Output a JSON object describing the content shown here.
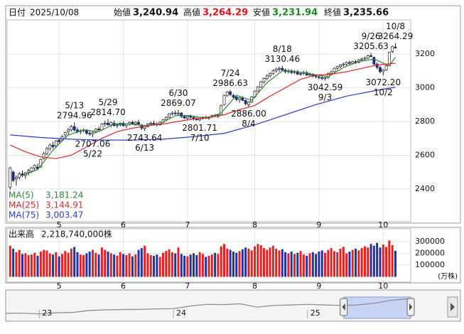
{
  "chart_data": {
    "type": "candlestick",
    "header": [
      {
        "label": "日付",
        "value": "2025/10/08",
        "color": "#111111"
      },
      {
        "label": "始値",
        "value": "3,240.94",
        "color": "#111111"
      },
      {
        "label": "高値",
        "value": "3,264.29",
        "color": "#e8101a"
      },
      {
        "label": "安値",
        "value": "3,231.94",
        "color": "#1a8a1a"
      },
      {
        "label": "終値",
        "value": "3,235.66",
        "color": "#111111"
      }
    ],
    "xlim": [
      -1,
      131
    ],
    "xticks": [
      {
        "value": 16,
        "label": "5"
      },
      {
        "value": 37,
        "label": "6"
      },
      {
        "value": 58,
        "label": "7"
      },
      {
        "value": 80,
        "label": "8"
      },
      {
        "value": 101,
        "label": "9"
      },
      {
        "value": 122,
        "label": "10"
      }
    ],
    "ylim": [
      2206,
      3402
    ],
    "yticks": [
      3200,
      3000,
      2800,
      2600,
      2400
    ],
    "grid": true,
    "up_color": "#ffffff",
    "down_color": "#1f2a7a",
    "candles": [
      [
        2410,
        2530,
        2395,
        2525
      ],
      [
        2500,
        2510,
        2440,
        2450
      ],
      [
        2460,
        2480,
        2420,
        2470
      ],
      [
        2470,
        2500,
        2455,
        2490
      ],
      [
        2490,
        2510,
        2470,
        2480
      ],
      [
        2480,
        2500,
        2460,
        2495
      ],
      [
        2500,
        2520,
        2480,
        2510
      ],
      [
        2505,
        2530,
        2495,
        2525
      ],
      [
        2525,
        2545,
        2510,
        2540
      ],
      [
        2530,
        2550,
        2510,
        2520
      ],
      [
        2530,
        2580,
        2525,
        2575
      ],
      [
        2580,
        2620,
        2575,
        2610
      ],
      [
        2610,
        2650,
        2600,
        2640
      ],
      [
        2640,
        2670,
        2625,
        2660
      ],
      [
        2660,
        2680,
        2640,
        2650
      ],
      [
        2655,
        2690,
        2650,
        2685
      ],
      [
        2690,
        2700,
        2670,
        2680
      ],
      [
        2690,
        2720,
        2680,
        2710
      ],
      [
        2720,
        2740,
        2705,
        2735
      ],
      [
        2740,
        2760,
        2720,
        2750
      ],
      [
        2750,
        2780,
        2740,
        2770
      ],
      [
        2770,
        2794.96,
        2740,
        2750
      ],
      [
        2750,
        2765,
        2730,
        2740
      ],
      [
        2740,
        2755,
        2725,
        2745
      ],
      [
        2745,
        2760,
        2735,
        2750
      ],
      [
        2750,
        2755,
        2720,
        2730
      ],
      [
        2730,
        2745,
        2715,
        2725
      ],
      [
        2725,
        2740,
        2707.06,
        2735
      ],
      [
        2735,
        2760,
        2730,
        2755
      ],
      [
        2755,
        2770,
        2745,
        2750
      ],
      [
        2750,
        2790,
        2748,
        2785
      ],
      [
        2785,
        2805,
        2770,
        2790
      ],
      [
        2790,
        2814.7,
        2775,
        2780
      ],
      [
        2780,
        2800,
        2765,
        2795
      ],
      [
        2790,
        2805,
        2770,
        2775
      ],
      [
        2775,
        2790,
        2760,
        2780
      ],
      [
        2780,
        2795,
        2770,
        2790
      ],
      [
        2790,
        2800,
        2770,
        2775
      ],
      [
        2775,
        2790,
        2760,
        2785
      ],
      [
        2785,
        2800,
        2775,
        2795
      ],
      [
        2795,
        2805,
        2780,
        2785
      ],
      [
        2785,
        2800,
        2775,
        2795
      ],
      [
        2795,
        2810,
        2780,
        2785
      ],
      [
        2780,
        2785,
        2750,
        2760
      ],
      [
        2760,
        2775,
        2743.64,
        2770
      ],
      [
        2770,
        2790,
        2765,
        2785
      ],
      [
        2785,
        2800,
        2775,
        2790
      ],
      [
        2790,
        2805,
        2780,
        2785
      ],
      [
        2785,
        2795,
        2770,
        2780
      ],
      [
        2780,
        2800,
        2775,
        2795
      ],
      [
        2795,
        2815,
        2790,
        2810
      ],
      [
        2810,
        2830,
        2805,
        2825
      ],
      [
        2825,
        2850,
        2820,
        2845
      ],
      [
        2845,
        2860,
        2835,
        2850
      ],
      [
        2850,
        2865,
        2840,
        2845
      ],
      [
        2845,
        2869.07,
        2835,
        2850
      ],
      [
        2850,
        2855,
        2820,
        2830
      ],
      [
        2830,
        2840,
        2815,
        2820
      ],
      [
        2820,
        2835,
        2810,
        2830
      ],
      [
        2830,
        2840,
        2815,
        2825
      ],
      [
        2825,
        2830,
        2805,
        2815
      ],
      [
        2815,
        2825,
        2805,
        2810
      ],
      [
        2810,
        2820,
        2801.71,
        2818
      ],
      [
        2818,
        2830,
        2810,
        2825
      ],
      [
        2825,
        2835,
        2815,
        2820
      ],
      [
        2820,
        2830,
        2810,
        2828
      ],
      [
        2828,
        2840,
        2820,
        2835
      ],
      [
        2835,
        2845,
        2825,
        2830
      ],
      [
        2830,
        2840,
        2820,
        2838
      ],
      [
        2840,
        2900,
        2838,
        2895
      ],
      [
        2900,
        2960,
        2895,
        2955
      ],
      [
        2955,
        2980,
        2945,
        2975
      ],
      [
        2975,
        2986.63,
        2950,
        2960
      ],
      [
        2955,
        2965,
        2935,
        2945
      ],
      [
        2945,
        2955,
        2920,
        2930
      ],
      [
        2930,
        2945,
        2910,
        2940
      ],
      [
        2940,
        2950,
        2920,
        2925
      ],
      [
        2925,
        2930,
        2895,
        2905
      ],
      [
        2900,
        2920,
        2886,
        2915
      ],
      [
        2915,
        2950,
        2910,
        2945
      ],
      [
        2945,
        2985,
        2940,
        2980
      ],
      [
        2980,
        3010,
        2975,
        3005
      ],
      [
        3005,
        3040,
        3000,
        3035
      ],
      [
        3035,
        3060,
        3025,
        3055
      ],
      [
        3055,
        3080,
        3045,
        3070
      ],
      [
        3070,
        3090,
        3060,
        3085
      ],
      [
        3085,
        3110,
        3075,
        3100
      ],
      [
        3100,
        3120,
        3090,
        3110
      ],
      [
        3110,
        3125,
        3095,
        3115
      ],
      [
        3115,
        3130.46,
        3100,
        3105
      ],
      [
        3105,
        3115,
        3085,
        3095
      ],
      [
        3095,
        3110,
        3085,
        3100
      ],
      [
        3100,
        3110,
        3080,
        3090
      ],
      [
        3090,
        3105,
        3080,
        3095
      ],
      [
        3095,
        3105,
        3075,
        3080
      ],
      [
        3080,
        3095,
        3070,
        3085
      ],
      [
        3085,
        3100,
        3075,
        3090
      ],
      [
        3090,
        3100,
        3070,
        3075
      ],
      [
        3075,
        3090,
        3065,
        3080
      ],
      [
        3080,
        3085,
        3060,
        3070
      ],
      [
        3070,
        3080,
        3055,
        3065
      ],
      [
        3065,
        3075,
        3050,
        3060
      ],
      [
        3060,
        3070,
        3045,
        3055
      ],
      [
        3055,
        3065,
        3042.59,
        3060
      ],
      [
        3060,
        3090,
        3055,
        3085
      ],
      [
        3085,
        3100,
        3075,
        3095
      ],
      [
        3095,
        3120,
        3090,
        3115
      ],
      [
        3115,
        3130,
        3105,
        3125
      ],
      [
        3125,
        3140,
        3115,
        3135
      ],
      [
        3135,
        3150,
        3125,
        3140
      ],
      [
        3140,
        3155,
        3130,
        3150
      ],
      [
        3150,
        3160,
        3135,
        3145
      ],
      [
        3145,
        3160,
        3140,
        3155
      ],
      [
        3155,
        3165,
        3140,
        3150
      ],
      [
        3150,
        3170,
        3145,
        3165
      ],
      [
        3165,
        3180,
        3155,
        3170
      ],
      [
        3170,
        3185,
        3160,
        3175
      ],
      [
        3175,
        3195,
        3170,
        3190
      ],
      [
        3190,
        3205.63,
        3180,
        3185
      ],
      [
        3180,
        3185,
        3130,
        3140
      ],
      [
        3140,
        3150,
        3110,
        3120
      ],
      [
        3120,
        3130,
        3085,
        3095
      ],
      [
        3095,
        3110,
        3072.2,
        3105
      ],
      [
        3105,
        3140,
        3100,
        3130
      ],
      [
        3130,
        3215,
        3128,
        3210
      ],
      [
        3215,
        3250,
        3205,
        3245
      ],
      [
        3240.94,
        3264.29,
        3231.94,
        3235.66
      ]
    ],
    "annotations": [
      {
        "date": "5/13",
        "value": 2794.96,
        "at": 21,
        "kind": "high"
      },
      {
        "date": "5/22",
        "value": 2707.06,
        "at": 27,
        "kind": "low"
      },
      {
        "date": "5/29",
        "value": 2814.7,
        "value_label": "2814.70",
        "at": 32,
        "kind": "high"
      },
      {
        "date": "6/13",
        "value": 2743.64,
        "at": 44,
        "kind": "low"
      },
      {
        "date": "6/30",
        "value": 2869.07,
        "at": 55,
        "kind": "high"
      },
      {
        "date": "7/10",
        "value": 2801.71,
        "at": 62,
        "kind": "low"
      },
      {
        "date": "7/24",
        "value": 2986.63,
        "at": 72,
        "kind": "high"
      },
      {
        "date": "8/4",
        "value": 2886,
        "value_label": "2886.00",
        "at": 78,
        "kind": "low"
      },
      {
        "date": "8/18",
        "value": 3130.46,
        "at": 89,
        "kind": "high"
      },
      {
        "date": "9/3",
        "value": 3042.59,
        "at": 103,
        "kind": "low"
      },
      {
        "date": "9/26",
        "value": 3205.63,
        "at": 118,
        "kind": "high"
      },
      {
        "date": "10/2",
        "value": 3072.2,
        "value_label": "3072.20",
        "at": 122,
        "kind": "low"
      },
      {
        "date": "10/8",
        "value": 3264.29,
        "at": 126,
        "kind": "high"
      }
    ],
    "series": [
      {
        "name": "MA(5)",
        "color": "#2e8b2e",
        "legend_value": "3,181.24",
        "x": [
          4,
          9,
          14,
          19,
          24,
          29,
          34,
          39,
          44,
          49,
          54,
          59,
          64,
          69,
          74,
          79,
          84,
          89,
          94,
          99,
          104,
          109,
          114,
          119,
          124,
          126
        ],
        "values": [
          2480,
          2515,
          2630,
          2720,
          2750,
          2740,
          2785,
          2785,
          2775,
          2785,
          2835,
          2835,
          2818,
          2850,
          2955,
          2925,
          3030,
          3100,
          3095,
          3080,
          3065,
          3120,
          3155,
          3170,
          3130,
          3181.24
        ]
      },
      {
        "name": "MA(25)",
        "color": "#e02828",
        "legend_value": "3,144.91",
        "x": [
          0,
          5,
          10,
          15,
          20,
          25,
          30,
          35,
          40,
          45,
          50,
          55,
          60,
          65,
          70,
          75,
          80,
          85,
          90,
          95,
          100,
          105,
          110,
          115,
          120,
          126
        ],
        "values": [
          2660,
          2620,
          2590,
          2580,
          2600,
          2650,
          2700,
          2740,
          2760,
          2775,
          2785,
          2800,
          2815,
          2825,
          2840,
          2870,
          2895,
          2950,
          3000,
          3050,
          3075,
          3080,
          3095,
          3115,
          3135,
          3144.91
        ]
      },
      {
        "name": "MA(75)",
        "color": "#2a3ac8",
        "legend_value": "3,003.47",
        "x": [
          0,
          10,
          20,
          30,
          40,
          50,
          60,
          70,
          80,
          90,
          100,
          110,
          120,
          126
        ],
        "values": [
          2720,
          2705,
          2695,
          2690,
          2690,
          2695,
          2710,
          2730,
          2780,
          2840,
          2900,
          2950,
          2985,
          3003.47
        ]
      }
    ],
    "volume": {
      "label": "出来高",
      "last_label": "2,218,740,000株",
      "unit": "(万株)",
      "ylim": [
        -45000,
        409000
      ],
      "yticks": [
        300000,
        200000,
        100000
      ],
      "up_color": "#e82020",
      "down_color": "#2233aa",
      "values": [
        265000,
        240000,
        210000,
        230000,
        195000,
        200000,
        185000,
        190000,
        205000,
        180000,
        215000,
        230000,
        225000,
        200000,
        190000,
        210000,
        175000,
        195000,
        220000,
        205000,
        240000,
        255000,
        210000,
        190000,
        185000,
        200000,
        215000,
        230000,
        205000,
        190000,
        250000,
        230000,
        215000,
        200000,
        190000,
        180000,
        210000,
        195000,
        185000,
        200000,
        175000,
        190000,
        230000,
        245000,
        265000,
        200000,
        185000,
        180000,
        190000,
        170000,
        205000,
        220000,
        235000,
        210000,
        200000,
        250000,
        195000,
        180000,
        175000,
        190000,
        200000,
        185000,
        210000,
        195000,
        170000,
        180000,
        190000,
        205000,
        195000,
        260000,
        280000,
        240000,
        230000,
        215000,
        205000,
        220000,
        235000,
        250000,
        240000,
        225000,
        260000,
        280000,
        270000,
        245000,
        230000,
        250000,
        265000,
        240000,
        225000,
        235000,
        210000,
        200000,
        215000,
        195000,
        205000,
        220000,
        190000,
        180000,
        200000,
        210000,
        195000,
        215000,
        225000,
        205000,
        230000,
        245000,
        220000,
        210000,
        240000,
        255000,
        200000,
        215000,
        230000,
        240000,
        225000,
        245000,
        260000,
        250000,
        280000,
        265000,
        290000,
        250000,
        275000,
        255000,
        310000,
        270000,
        221874
      ]
    },
    "navigator": {
      "xlim": [
        2022.76,
        2025.77
      ],
      "ylim": [
        1500,
        3400
      ],
      "xticks": [
        {
          "value": 2023,
          "label": "23"
        },
        {
          "value": 2024,
          "label": "24"
        },
        {
          "value": 2025,
          "label": "25"
        }
      ],
      "window": [
        2025.27,
        2025.77
      ],
      "x": [
        2022.75,
        2022.875,
        2023,
        2023.125,
        2023.25,
        2023.375,
        2023.5,
        2023.625,
        2023.75,
        2023.875,
        2024,
        2024.125,
        2024.25,
        2024.375,
        2024.5,
        2024.625,
        2024.75,
        2024.875,
        2025,
        2025.125,
        2025.25,
        2025.375,
        2025.5,
        2025.625,
        2025.75
      ],
      "values": [
        1950,
        1960,
        1900,
        2000,
        2030,
        2200,
        2260,
        2290,
        2300,
        2340,
        2370,
        2600,
        2750,
        2730,
        2800,
        2500,
        2650,
        2700,
        2750,
        2700,
        2650,
        2700,
        2850,
        3100,
        3240
      ]
    }
  }
}
